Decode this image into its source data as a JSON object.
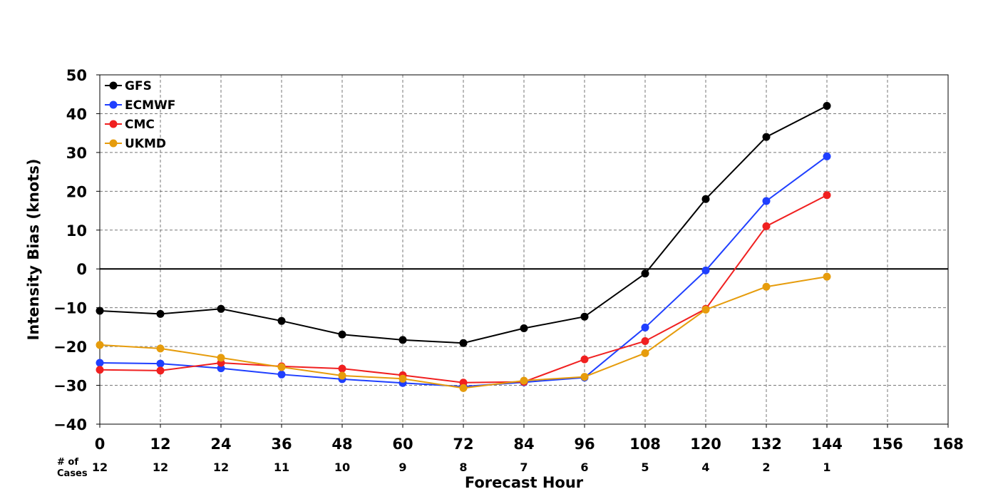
{
  "chart_data": {
    "type": "line",
    "x": [
      0,
      12,
      24,
      36,
      48,
      60,
      72,
      84,
      96,
      108,
      120,
      132,
      144
    ],
    "xticks": [
      0,
      12,
      24,
      36,
      48,
      60,
      72,
      84,
      96,
      108,
      120,
      132,
      144,
      156,
      168
    ],
    "yticks": [
      50,
      40,
      30,
      20,
      10,
      0,
      -10,
      -20,
      -30,
      -40
    ],
    "xlim": [
      0,
      168
    ],
    "ylim": [
      -40,
      50
    ],
    "xlabel": "Forecast Hour",
    "ylabel": "Intensity Bias (knots)",
    "cases_label": "# of\nCases",
    "cases": [
      12,
      12,
      12,
      11,
      10,
      9,
      8,
      7,
      6,
      5,
      4,
      2,
      1
    ],
    "grid": true,
    "legend_position": "top-left",
    "series": [
      {
        "name": "GFS",
        "color": "#000000",
        "values": [
          -10.8,
          -11.6,
          -10.3,
          -13.4,
          -16.9,
          -18.3,
          -19.1,
          -15.3,
          -12.3,
          -1.2,
          18.0,
          34.0,
          42.0
        ]
      },
      {
        "name": "ECMWF",
        "color": "#1f3fff",
        "values": [
          -24.2,
          -24.4,
          -25.6,
          -27.2,
          -28.4,
          -29.4,
          -30.3,
          -29.2,
          -28.0,
          -15.1,
          -0.4,
          17.5,
          29.0
        ]
      },
      {
        "name": "CMC",
        "color": "#f02020",
        "values": [
          -26.0,
          -26.2,
          -24.2,
          -25.1,
          -25.7,
          -27.4,
          -29.3,
          -29.1,
          -23.3,
          -18.6,
          -10.3,
          11.0,
          19.0
        ]
      },
      {
        "name": "UKMD",
        "color": "#e69c0c",
        "values": [
          -19.6,
          -20.5,
          -22.9,
          -25.3,
          -27.5,
          -28.3,
          -30.7,
          -28.8,
          -27.8,
          -21.7,
          -10.5,
          -4.6,
          -2.0
        ]
      }
    ]
  }
}
